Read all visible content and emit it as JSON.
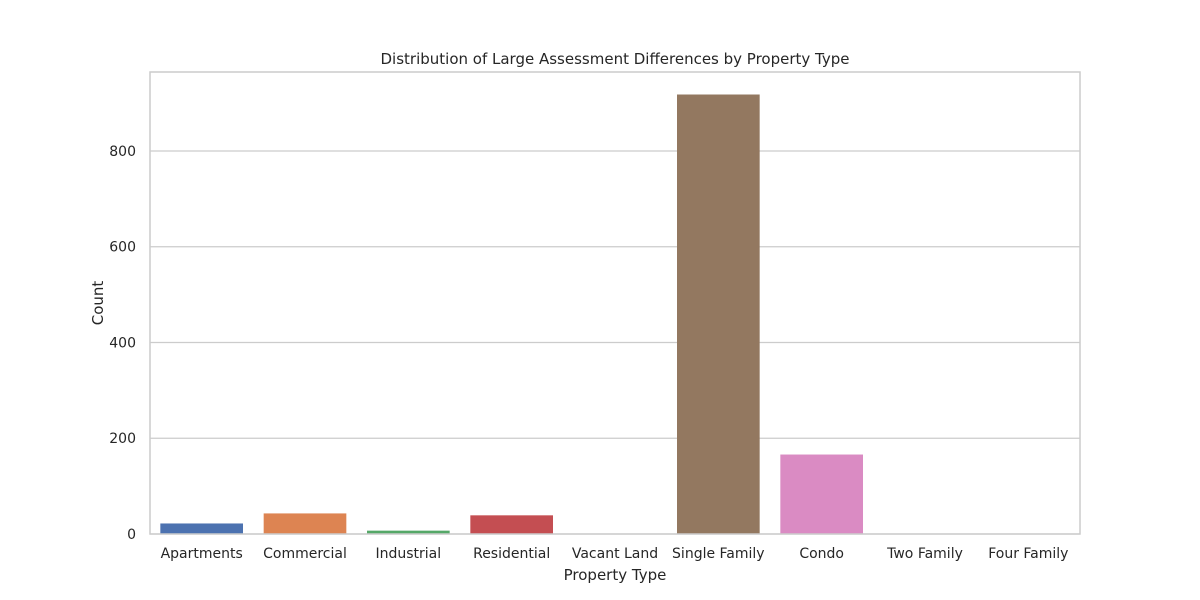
{
  "chart_data": {
    "type": "bar",
    "title": "Distribution of Large Assessment Differences by Property Type",
    "xlabel": "Property Type",
    "ylabel": "Count",
    "categories": [
      "Apartments",
      "Commercial",
      "Industrial",
      "Residential",
      "Vacant Land",
      "Single Family",
      "Condo",
      "Two Family",
      "Four Family"
    ],
    "values": [
      22,
      43,
      7,
      39,
      0,
      918,
      166,
      0,
      0
    ],
    "colors": [
      "#4c72b0",
      "#dd8452",
      "#55a868",
      "#c44e52",
      "#8172b3",
      "#937860",
      "#da8bc3",
      "#8c8c8c",
      "#ccb974"
    ],
    "ylim": [
      0,
      965
    ],
    "yticks": [
      0,
      200,
      400,
      600,
      800
    ],
    "grid": true,
    "gridAxis": "y",
    "legend": "none"
  }
}
